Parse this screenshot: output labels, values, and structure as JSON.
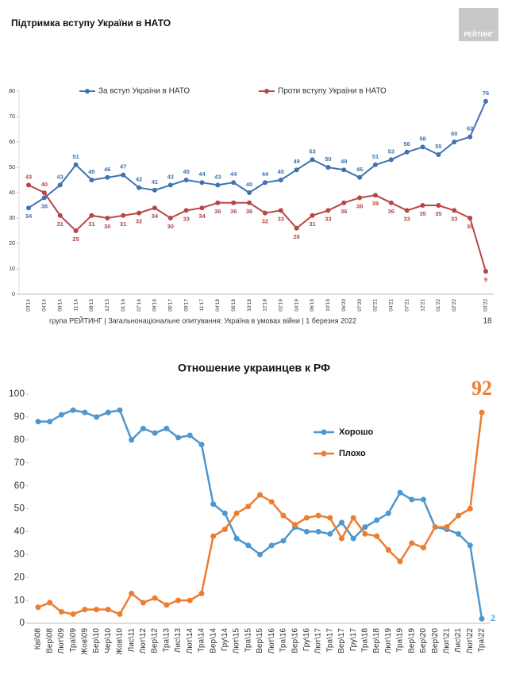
{
  "header": {
    "logo": "РЕЙТИНГ",
    "footer": "група РЕЙТИНГ | Загальнонаціональне опитування: Україна в умовах війни | 1 березня 2022",
    "page_number": "18"
  },
  "chart_data": [
    {
      "type": "line",
      "title": "Підтримка вступу України в НАТО",
      "categories": [
        "03'14",
        "04'14",
        "09'14",
        "11'14",
        "08'15",
        "12'15",
        "01'16",
        "07'16",
        "09'16",
        "05'17",
        "09'17",
        "11'17",
        "04'18",
        "06'18",
        "10'18",
        "12'18",
        "02'19",
        "04'19",
        "06'19",
        "10'19",
        "06'20",
        "07'20",
        "02'21",
        "04'21",
        "07'21",
        "12'21",
        "01'22",
        "02'22",
        null,
        "03'22"
      ],
      "series": [
        {
          "name": "За вступ України в НАТО",
          "color": "#3f72b3",
          "values": [
            34,
            38,
            43,
            51,
            45,
            46,
            47,
            42,
            41,
            43,
            45,
            44,
            43,
            44,
            40,
            44,
            45,
            49,
            53,
            50,
            49,
            46,
            51,
            53,
            56,
            58,
            55,
            60,
            62,
            76
          ]
        },
        {
          "name": "Проти вступу України в НАТО",
          "color": "#b84545",
          "values": [
            43,
            40,
            31,
            25,
            31,
            30,
            31,
            32,
            34,
            30,
            33,
            34,
            36,
            36,
            36,
            32,
            33,
            26,
            31,
            33,
            36,
            38,
            39,
            36,
            33,
            35,
            35,
            33,
            30,
            9
          ]
        }
      ],
      "ylim": [
        0,
        80
      ],
      "yticks": [
        0,
        10,
        20,
        30,
        40,
        50,
        60,
        70,
        80
      ],
      "grid": false,
      "legend": "top"
    },
    {
      "type": "line",
      "title": "Отношение украинцев к РФ",
      "categories": [
        "Кві\\08",
        "Вер\\08",
        "Лют\\09",
        "Тра\\09",
        "Жов\\09",
        "Бер\\10",
        "Чер\\10",
        "Жов\\10",
        "Лис\\11",
        "Лют\\12",
        "Вер\\12",
        "Тра\\13",
        "Лис\\13",
        "Лют\\14",
        "Тра\\14",
        "Вер\\14",
        "Гру\\14",
        "Лют\\15",
        "Тра\\15",
        "Вер\\15",
        "Лют\\16",
        "Тра\\16",
        "Вер\\16",
        "Гру\\16",
        "Лют\\17",
        "Тра\\17",
        "Вер\\17",
        "Гру\\17",
        "Тра\\18",
        "Вер\\18",
        "Лют\\19",
        "Тра\\19",
        "Вер\\19",
        "Бер\\20",
        "Вер\\20",
        "Лют\\21",
        "Лис\\21",
        "Лют\\22",
        "Тра\\22"
      ],
      "series": [
        {
          "name": "Хорошо",
          "color": "#4e97cf",
          "values": [
            88,
            88,
            91,
            93,
            92,
            90,
            92,
            93,
            80,
            85,
            83,
            85,
            81,
            82,
            78,
            52,
            48,
            37,
            34,
            30,
            34,
            36,
            42,
            40,
            40,
            39,
            44,
            37,
            42,
            45,
            48,
            57,
            54,
            54,
            42,
            41,
            39,
            34,
            2
          ]
        },
        {
          "name": "Плохо",
          "color": "#ed7d31",
          "values": [
            7,
            9,
            5,
            4,
            6,
            6,
            6,
            4,
            13,
            9,
            11,
            8,
            10,
            10,
            13,
            38,
            41,
            48,
            51,
            56,
            53,
            47,
            43,
            46,
            47,
            46,
            37,
            46,
            39,
            38,
            32,
            27,
            35,
            33,
            42,
            42,
            47,
            50,
            92
          ]
        }
      ],
      "ylim": [
        0,
        100
      ],
      "yticks": [
        0,
        10,
        20,
        30,
        40,
        50,
        60,
        70,
        80,
        90,
        100
      ],
      "grid": false,
      "legend": "center"
    }
  ]
}
